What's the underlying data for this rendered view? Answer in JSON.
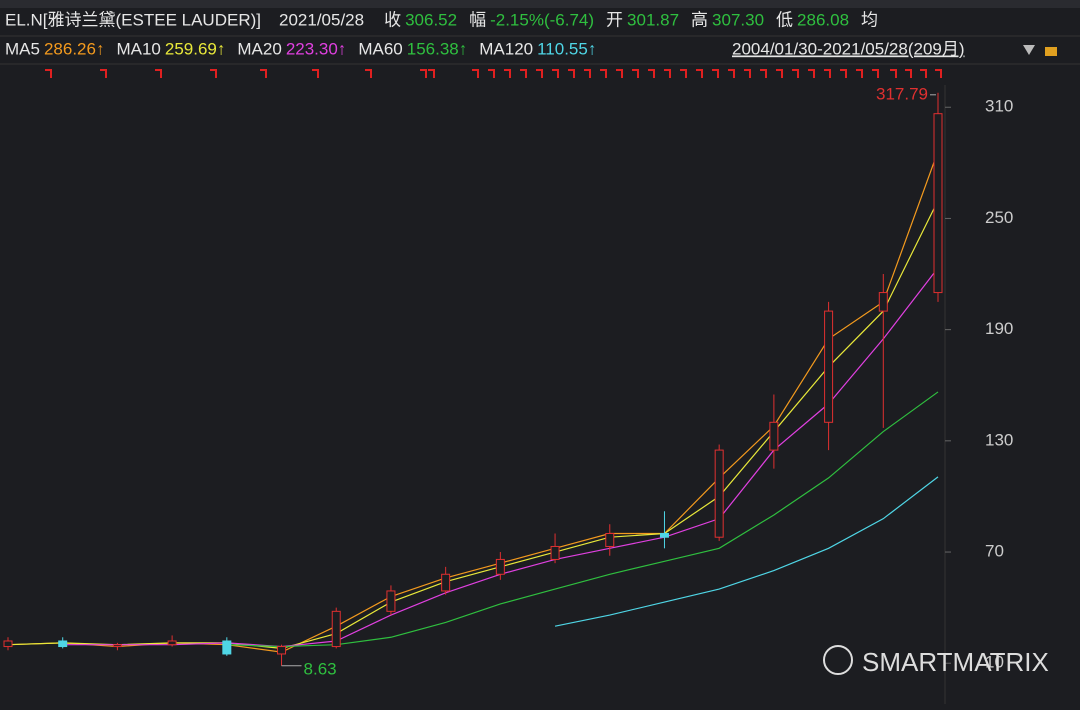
{
  "header": {
    "symbol": "EL.N[雅诗兰黛(ESTEE LAUDER)]",
    "date": "2021/05/28",
    "close_label": "收",
    "close": "306.52",
    "change_label": "幅",
    "change": "-2.15%(-6.74)",
    "open_label": "开",
    "open": "301.87",
    "high_label": "高",
    "high": "307.30",
    "low_label": "低",
    "low": "286.08",
    "avg_label": "均"
  },
  "ma_legend": [
    {
      "name": "MA5",
      "value": "286.26↑",
      "color": "#f39a1e"
    },
    {
      "name": "MA10",
      "value": "259.69↑",
      "color": "#e8e83a"
    },
    {
      "name": "MA20",
      "value": "223.30↑",
      "color": "#e040e0"
    },
    {
      "name": "MA60",
      "value": "156.38↑",
      "color": "#2fbf3f"
    },
    {
      "name": "MA120",
      "value": "110.55↑",
      "color": "#4fd6e6"
    }
  ],
  "range": "2004/01/30-2021/05/28(209月)",
  "watermark": "SMARTMATRIX",
  "chart": {
    "ylim": [
      -12,
      322
    ],
    "yticks": [
      310,
      250,
      190,
      130,
      70,
      10
    ],
    "candles": [
      [
        19,
        24,
        17,
        22
      ],
      [
        22,
        24,
        18,
        19
      ],
      [
        19,
        21,
        17,
        20
      ],
      [
        20,
        25,
        19,
        22
      ],
      [
        22,
        24,
        14,
        15
      ],
      [
        15,
        20,
        8.63,
        19
      ],
      [
        19,
        40,
        18,
        38
      ],
      [
        38,
        52,
        36,
        49
      ],
      [
        49,
        62,
        47,
        58
      ],
      [
        58,
        70,
        55,
        66
      ],
      [
        66,
        80,
        64,
        73
      ],
      [
        73,
        85,
        68,
        80
      ],
      [
        80,
        92,
        72,
        78
      ],
      [
        78,
        128,
        76,
        125
      ],
      [
        125,
        155,
        115,
        140
      ],
      [
        140,
        205,
        125,
        200
      ],
      [
        200,
        220,
        137,
        210
      ],
      [
        210,
        317.79,
        205,
        306.52
      ]
    ],
    "ma": [
      [
        20,
        21,
        19,
        21,
        20,
        16,
        30,
        46,
        56,
        64,
        72,
        80,
        80,
        110,
        138,
        185,
        205,
        286.26
      ],
      [
        20,
        21,
        20,
        21,
        21,
        18,
        26,
        43,
        54,
        62,
        70,
        78,
        80,
        100,
        135,
        170,
        200,
        259.69
      ],
      [
        null,
        20,
        20,
        20,
        21,
        19,
        22,
        36,
        48,
        58,
        66,
        72,
        78,
        88,
        125,
        150,
        185,
        223.3
      ],
      [
        null,
        null,
        null,
        null,
        20,
        19,
        20,
        24,
        32,
        42,
        50,
        58,
        65,
        72,
        90,
        110,
        135,
        156.38
      ],
      [
        null,
        null,
        null,
        null,
        null,
        null,
        null,
        null,
        null,
        null,
        30,
        36,
        43,
        50,
        60,
        72,
        88,
        110.55
      ]
    ],
    "max_index": 17,
    "min_index": 5
  }
}
